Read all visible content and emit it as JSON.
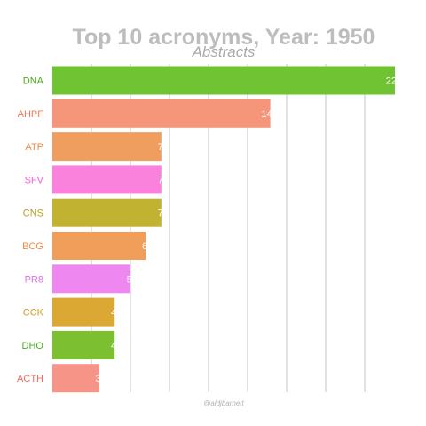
{
  "chart_data": {
    "type": "bar",
    "orientation": "horizontal",
    "title": "Top 10 acronyms, Year: 1950",
    "subtitle": "Abstracts",
    "caption": "@aldjbarnett",
    "categories": [
      "DNA",
      "AHPF",
      "ATP",
      "SFV",
      "CNS",
      "BCG",
      "PR8",
      "CCK",
      "DHO",
      "ACTH"
    ],
    "values": [
      22,
      14,
      7,
      7,
      7,
      6,
      5,
      4,
      4,
      3
    ],
    "colors": [
      "#70c332",
      "#f5957a",
      "#f09e60",
      "#fb82dc",
      "#c2b232",
      "#f09e5a",
      "#ee88f0",
      "#dca834",
      "#7cc032",
      "#f79488"
    ],
    "label_colors": [
      "#4daa20",
      "#f0775a",
      "#ee8a45",
      "#f060d0",
      "#b8a020",
      "#ee8a45",
      "#e070e8",
      "#d49a20",
      "#4daa20",
      "#f06a60"
    ],
    "xlim": [
      0,
      22
    ],
    "grid": true,
    "legend": "none"
  }
}
